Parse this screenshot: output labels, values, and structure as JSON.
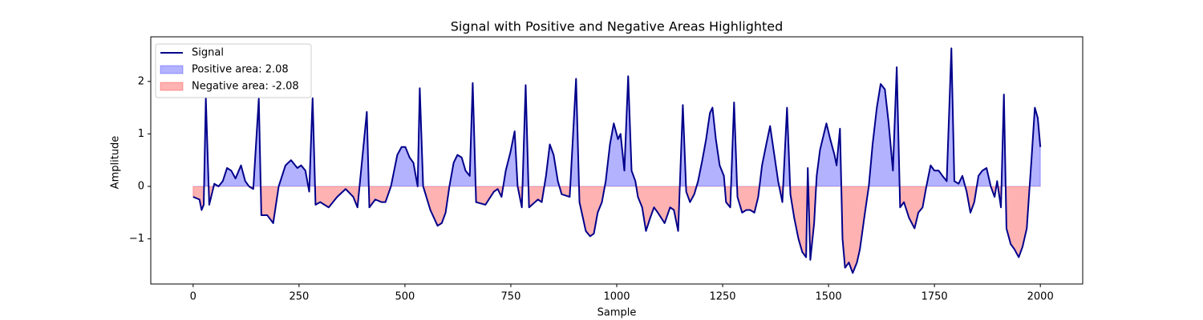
{
  "chart_data": {
    "type": "line",
    "title": "Signal with Positive and Negative Areas Highlighted",
    "x_label": "Sample",
    "y_label": "Amplitude",
    "x": [
      0,
      15,
      20,
      25,
      30,
      38,
      50,
      60,
      70,
      80,
      90,
      100,
      113,
      123,
      132,
      142,
      155,
      161,
      175,
      189,
      202,
      218,
      231,
      246,
      255,
      265,
      274,
      282,
      289,
      300,
      320,
      340,
      360,
      378,
      388,
      410,
      416,
      430,
      445,
      454,
      467,
      482,
      492,
      501,
      511,
      520,
      530,
      535,
      543,
      560,
      577,
      587,
      596,
      605,
      615,
      624,
      634,
      643,
      653,
      660,
      668,
      690,
      710,
      719,
      728,
      738,
      749,
      759,
      766,
      776,
      785,
      793,
      814,
      823,
      833,
      842,
      851,
      861,
      870,
      889,
      904,
      912,
      927,
      937,
      946,
      955,
      965,
      974,
      984,
      993,
      1003,
      1009,
      1018,
      1027,
      1035,
      1044,
      1050,
      1060,
      1069,
      1079,
      1088,
      1097,
      1113,
      1126,
      1135,
      1145,
      1156,
      1164,
      1173,
      1183,
      1192,
      1202,
      1211,
      1220,
      1226,
      1234,
      1243,
      1253,
      1258,
      1268,
      1277,
      1285,
      1296,
      1306,
      1315,
      1325,
      1334,
      1343,
      1353,
      1362,
      1372,
      1381,
      1391,
      1402,
      1410,
      1419,
      1429,
      1438,
      1447,
      1451,
      1457,
      1466,
      1472,
      1480,
      1489,
      1495,
      1504,
      1514,
      1519,
      1527,
      1533,
      1539,
      1548,
      1557,
      1567,
      1574,
      1586,
      1595,
      1604,
      1614,
      1623,
      1633,
      1642,
      1652,
      1661,
      1669,
      1678,
      1690,
      1703,
      1712,
      1722,
      1731,
      1741,
      1750,
      1760,
      1769,
      1779,
      1790,
      1797,
      1807,
      1816,
      1826,
      1835,
      1844,
      1854,
      1863,
      1873,
      1883,
      1892,
      1898,
      1907,
      1914,
      1920,
      1930,
      1939,
      1949,
      1958,
      1968,
      1973,
      1979,
      1987,
      1994,
      2000
    ],
    "series": [
      {
        "name": "Signal",
        "color": "#00008b",
        "values": [
          -0.2,
          -0.25,
          -0.45,
          -0.35,
          1.68,
          -0.35,
          0.05,
          0.0,
          0.1,
          0.35,
          0.3,
          0.15,
          0.4,
          0.1,
          0.0,
          -0.05,
          1.67,
          -0.55,
          -0.55,
          -0.7,
          0.0,
          0.4,
          0.5,
          0.35,
          0.4,
          0.3,
          -0.1,
          1.68,
          -0.35,
          -0.3,
          -0.4,
          -0.2,
          -0.05,
          -0.2,
          -0.4,
          1.42,
          -0.4,
          -0.25,
          -0.3,
          -0.3,
          0.0,
          0.6,
          0.75,
          0.75,
          0.55,
          0.45,
          0.0,
          1.87,
          0.0,
          -0.45,
          -0.75,
          -0.7,
          -0.5,
          0.0,
          0.45,
          0.6,
          0.55,
          0.3,
          0.2,
          1.97,
          -0.3,
          -0.35,
          -0.1,
          -0.05,
          -0.2,
          0.3,
          0.65,
          1.05,
          0.0,
          -0.4,
          1.93,
          -0.4,
          -0.25,
          -0.3,
          0.2,
          0.8,
          0.6,
          0.1,
          -0.15,
          -0.2,
          2.05,
          -0.3,
          -0.85,
          -0.95,
          -0.9,
          -0.5,
          -0.3,
          0.1,
          0.8,
          1.2,
          0.9,
          1.0,
          0.3,
          2.1,
          0.3,
          0.1,
          -0.2,
          -0.4,
          -0.85,
          -0.6,
          -0.4,
          -0.5,
          -0.7,
          -0.4,
          -0.45,
          -0.85,
          1.55,
          -0.1,
          -0.3,
          -0.15,
          0.1,
          0.5,
          0.9,
          1.4,
          1.5,
          0.9,
          0.4,
          0.2,
          -0.3,
          -0.4,
          1.6,
          -0.2,
          -0.5,
          -0.45,
          -0.45,
          -0.5,
          -0.2,
          0.4,
          0.8,
          1.15,
          0.6,
          0.1,
          -0.3,
          1.5,
          -0.15,
          -0.6,
          -1.0,
          -1.25,
          -1.35,
          0.35,
          -1.4,
          -0.7,
          0.2,
          0.7,
          1.0,
          1.2,
          0.9,
          0.6,
          0.4,
          1.1,
          -1.0,
          -1.55,
          -1.45,
          -1.65,
          -1.45,
          -1.2,
          -0.5,
          0.0,
          0.8,
          1.5,
          1.95,
          1.85,
          1.2,
          0.3,
          2.27,
          -0.4,
          -0.3,
          -0.6,
          -0.8,
          -0.5,
          -0.4,
          0.0,
          0.4,
          0.3,
          0.3,
          0.2,
          0.1,
          2.63,
          0.1,
          0.05,
          0.2,
          -0.1,
          -0.5,
          -0.3,
          0.2,
          0.3,
          0.35,
          0.0,
          -0.2,
          0.1,
          -0.4,
          1.75,
          -0.8,
          -1.1,
          -1.2,
          -1.35,
          -1.15,
          -0.8,
          -0.2,
          0.5,
          1.5,
          1.3,
          0.75
        ]
      }
    ],
    "fills": [
      {
        "name": "Positive area: 2.08",
        "color": "#0000ff",
        "where": "above"
      },
      {
        "name": "Negative area: -2.08",
        "color": "#ff0000",
        "where": "below"
      }
    ],
    "xlim": [
      -100,
      2100
    ],
    "xticks": [
      0,
      250,
      500,
      750,
      1000,
      1250,
      1500,
      1750,
      2000
    ],
    "ylim": [
      -1.86,
      2.85
    ],
    "yticks": [
      {
        "value": -1,
        "label": "−1"
      },
      0,
      1,
      2
    ],
    "legend": "upper left"
  }
}
